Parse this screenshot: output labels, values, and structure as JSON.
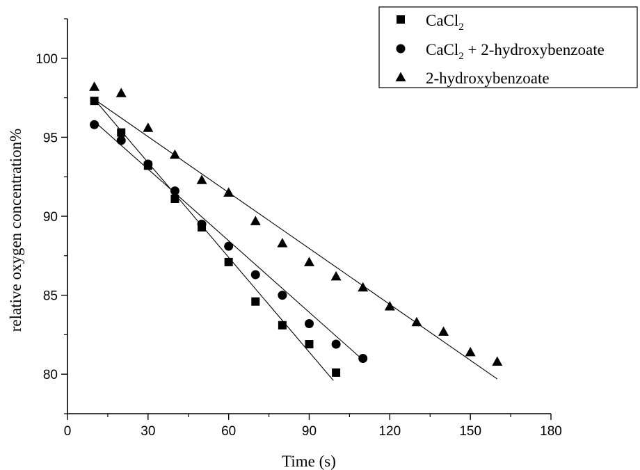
{
  "chart_data": {
    "type": "scatter",
    "title": "",
    "xlabel": "Time (s)",
    "ylabel": "relative oxygen concentration%",
    "xlim": [
      0,
      180
    ],
    "ylim": [
      77.5,
      102.5
    ],
    "xticks": [
      0,
      30,
      60,
      90,
      120,
      150,
      180
    ],
    "yticks": [
      80,
      85,
      90,
      95,
      100
    ],
    "grid": false,
    "legend_position": "top-right",
    "series": [
      {
        "name": "CaCl2",
        "name_parts": {
          "base": "CaCl",
          "sub": "2",
          "rest": ""
        },
        "marker": "square",
        "x": [
          10,
          20,
          30,
          40,
          50,
          60,
          70,
          80,
          90,
          100
        ],
        "y": [
          97.3,
          95.3,
          93.2,
          91.1,
          89.3,
          87.1,
          84.6,
          83.1,
          81.9,
          80.1
        ],
        "fit": {
          "x": [
            10,
            99
          ],
          "y": [
            97.4,
            79.6
          ]
        }
      },
      {
        "name": "CaCl2 + 2-hydroxybenzoate",
        "name_parts": {
          "base": "CaCl",
          "sub": "2",
          "rest": " + 2-hydroxybenzoate"
        },
        "marker": "circle",
        "x": [
          10,
          20,
          30,
          40,
          50,
          60,
          70,
          80,
          90,
          100,
          110
        ],
        "y": [
          95.8,
          94.8,
          93.3,
          91.6,
          89.5,
          88.1,
          86.3,
          85.0,
          83.2,
          81.9,
          81.0
        ],
        "fit": {
          "x": [
            10,
            110
          ],
          "y": [
            96.0,
            80.9
          ]
        }
      },
      {
        "name": "2-hydroxybenzoate",
        "name_parts": {
          "base": "2-hydroxybenzoate",
          "sub": "",
          "rest": ""
        },
        "marker": "triangle",
        "x": [
          10,
          20,
          30,
          40,
          50,
          60,
          70,
          80,
          90,
          100,
          110,
          120,
          130,
          140,
          150,
          160
        ],
        "y": [
          98.2,
          97.8,
          95.6,
          93.9,
          92.3,
          91.5,
          89.7,
          88.3,
          87.1,
          86.2,
          85.5,
          84.3,
          83.3,
          82.7,
          81.4,
          80.8
        ],
        "fit": {
          "x": [
            10,
            160
          ],
          "y": [
            97.4,
            79.7
          ]
        }
      }
    ]
  }
}
